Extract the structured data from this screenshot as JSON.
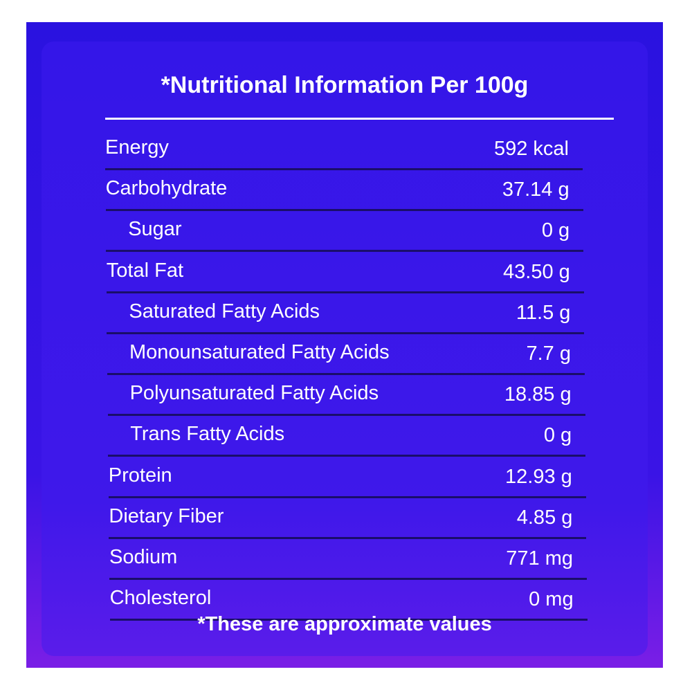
{
  "title": "*Nutritional Information Per 100g",
  "table": {
    "rows": [
      [
        "Energy",
        "592 kcal"
      ],
      [
        "Carbohydrate",
        "37.14 g"
      ],
      [
        "Sugar",
        "0 g"
      ],
      [
        "Total Fat",
        "43.50 g"
      ],
      [
        "Saturated Fatty Acids",
        "11.5 g"
      ],
      [
        "Monounsaturated Fatty Acids",
        "7.7 g"
      ],
      [
        "Polyunsaturated Fatty Acids",
        "18.85 g"
      ],
      [
        "Trans Fatty Acids",
        "0 g"
      ],
      [
        "Protein",
        "12.93 g"
      ],
      [
        "Dietary Fiber",
        "4.85 g"
      ],
      [
        "Sodium",
        "771 mg"
      ],
      [
        "Cholesterol",
        "0 mg"
      ]
    ]
  },
  "footnote": "*These are approximate values"
}
